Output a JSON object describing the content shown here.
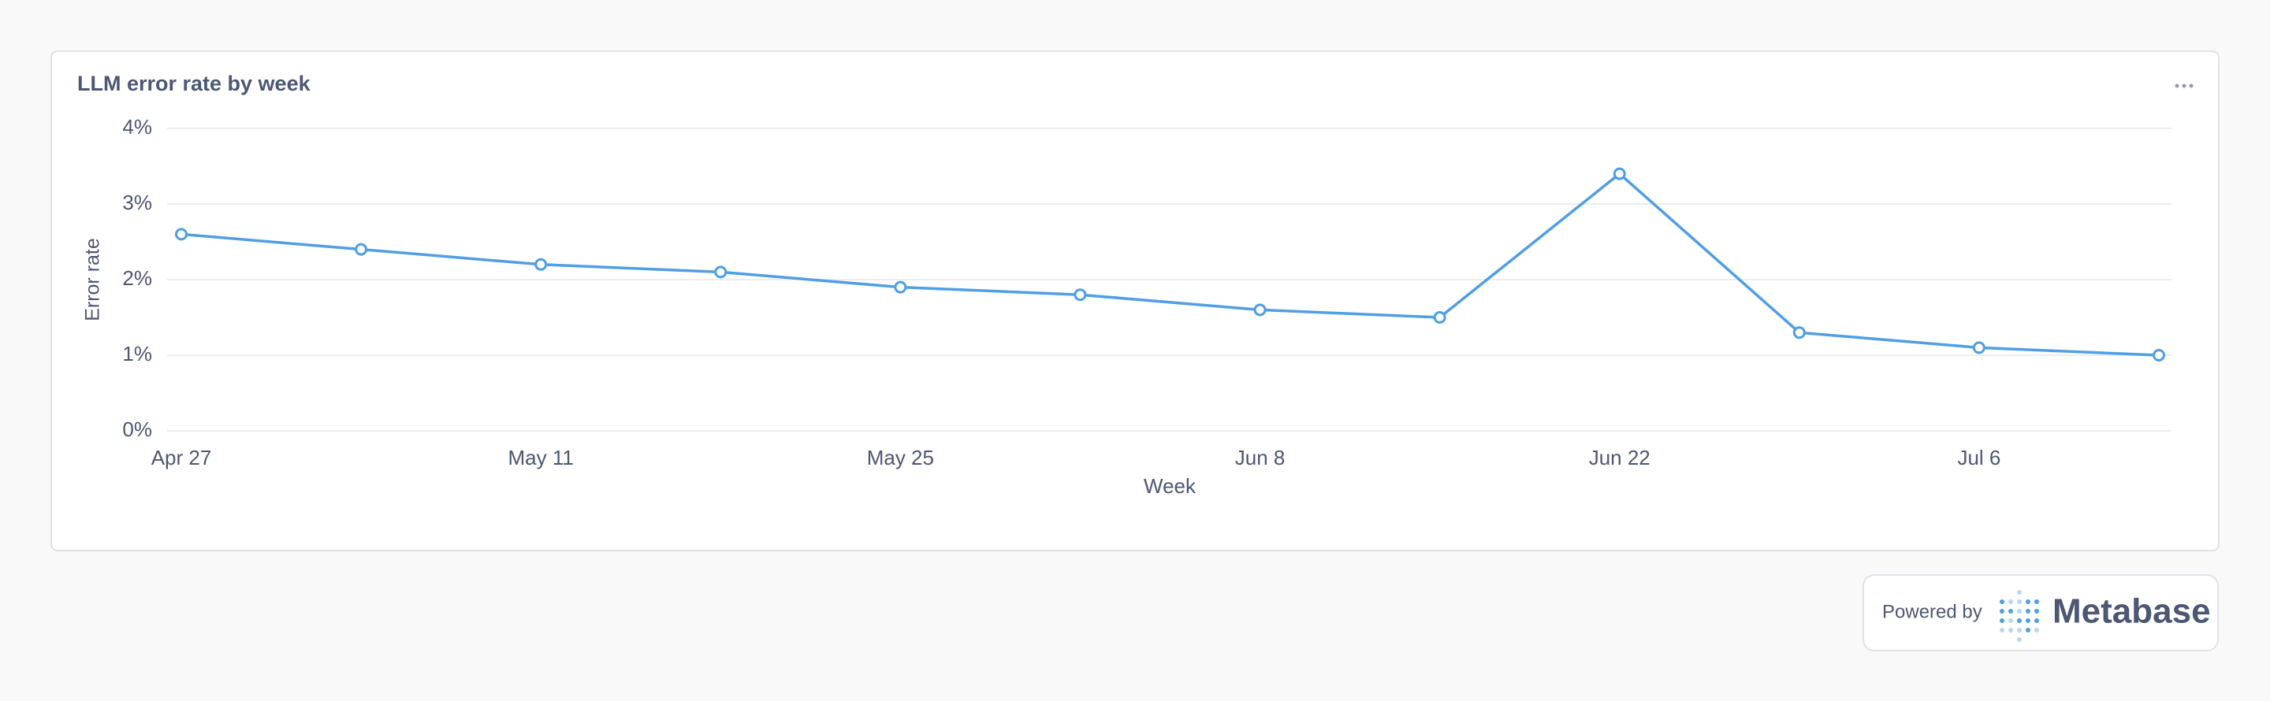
{
  "chart_data": {
    "type": "line",
    "title": "LLM error rate by week",
    "x_label": "Week",
    "y_label": "Error rate",
    "categories": [
      "Apr 27",
      null,
      "May 11",
      null,
      "May 25",
      null,
      "Jun 8",
      null,
      "Jun 22",
      null,
      "Jul 6",
      null
    ],
    "values": [
      2.6,
      2.4,
      2.2,
      2.1,
      1.9,
      1.8,
      1.6,
      1.5,
      3.4,
      1.3,
      1.1,
      1.0
    ],
    "color": "#509ee3",
    "ylim": [
      0,
      4
    ],
    "yticks": [
      {
        "value": 0,
        "label": "0%"
      },
      {
        "value": 1,
        "label": "1%"
      },
      {
        "value": 2,
        "label": "2%"
      },
      {
        "value": 3,
        "label": "3%"
      },
      {
        "value": 4,
        "label": "4%"
      }
    ],
    "grid": true
  },
  "footer": {
    "powered_by": "Powered by",
    "brand": "Metabase"
  }
}
